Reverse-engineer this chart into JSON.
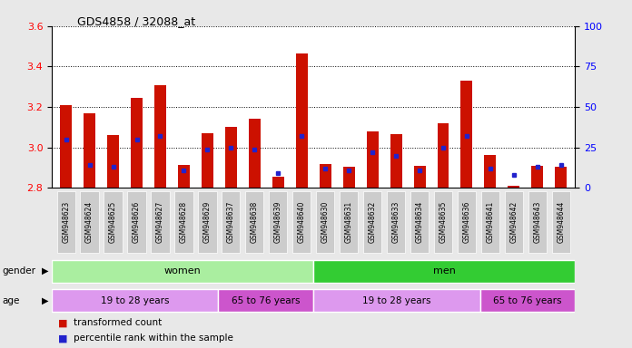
{
  "title": "GDS4858 / 32088_at",
  "samples": [
    "GSM948623",
    "GSM948624",
    "GSM948625",
    "GSM948626",
    "GSM948627",
    "GSM948628",
    "GSM948629",
    "GSM948637",
    "GSM948638",
    "GSM948639",
    "GSM948640",
    "GSM948630",
    "GSM948631",
    "GSM948632",
    "GSM948633",
    "GSM948634",
    "GSM948635",
    "GSM948636",
    "GSM948641",
    "GSM948642",
    "GSM948643",
    "GSM948644"
  ],
  "red_values": [
    3.21,
    3.17,
    3.06,
    3.245,
    3.31,
    2.915,
    3.07,
    3.1,
    3.14,
    2.855,
    3.465,
    2.92,
    2.905,
    3.08,
    3.065,
    2.91,
    3.12,
    3.33,
    2.965,
    2.81,
    2.91,
    2.905
  ],
  "blue_pct": [
    30,
    14,
    13,
    30,
    32,
    11,
    24,
    25,
    24,
    9,
    32,
    12,
    11,
    22,
    20,
    11,
    25,
    32,
    12,
    8,
    13,
    14
  ],
  "ymin": 2.8,
  "ymax": 3.6,
  "yticks_left": [
    2.8,
    3.0,
    3.2,
    3.4,
    3.6
  ],
  "yticks_right": [
    0,
    25,
    50,
    75,
    100
  ],
  "bar_color": "#cc1100",
  "blue_color": "#2222cc",
  "plot_bg": "#ffffff",
  "fig_bg": "#e8e8e8",
  "tick_bg": "#cccccc",
  "gender_light_green": "#aaeea0",
  "gender_dark_green": "#33cc33",
  "age_light_purple": "#dd99ee",
  "age_dark_purple": "#cc55cc",
  "women_n": 11,
  "men_n": 11,
  "women_young_n": 7,
  "women_old_n": 4,
  "men_young_n": 7,
  "men_old_n": 4,
  "bar_width": 0.5
}
